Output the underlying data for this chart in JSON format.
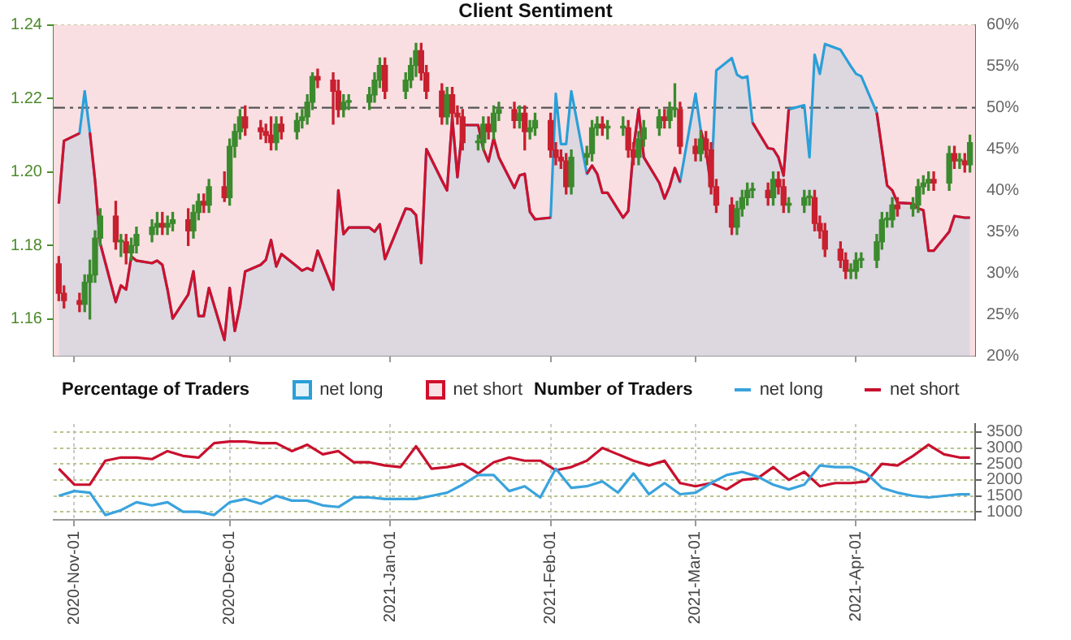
{
  "chart_data": [
    {
      "type": "candlestick",
      "title": "Client Sentiment",
      "legend_title": "Percentage of Traders",
      "legend": "bottom left",
      "grid": true,
      "tick_labels": "y",
      "xlim": [
        "2020-10-28",
        "2021-04-24"
      ],
      "xticks": [
        {
          "value": "2020-11-01",
          "label": null
        },
        {
          "value": "2020-12-01",
          "label": null
        },
        {
          "value": "2021-01-01",
          "label": null
        },
        {
          "value": "2021-02-01",
          "label": null
        },
        {
          "value": "2021-03-01",
          "label": null
        },
        {
          "value": "2021-04-01",
          "label": null
        }
      ],
      "ylim": [
        1.15,
        1.24
      ],
      "yticks": [
        1.16,
        1.18,
        {
          "value": 1.2,
          "label": "1.20"
        },
        1.22,
        1.24
      ],
      "y2lim": [
        20,
        60
      ],
      "y2ticks": [
        {
          "value": 20,
          "label": "20%"
        },
        {
          "value": 25,
          "label": "25%"
        },
        {
          "value": 30,
          "label": "30%"
        },
        {
          "value": 35,
          "label": "35%"
        },
        {
          "value": 40,
          "label": "40%"
        },
        {
          "value": 45,
          "label": "45%"
        },
        {
          "value": 50,
          "label": "50%"
        },
        {
          "value": 55,
          "label": "55%"
        },
        {
          "value": 60,
          "label": "60%"
        }
      ],
      "ref_lines": [
        {
          "axis": "y2",
          "value": 50,
          "color": "#555555",
          "line_style": "dashed"
        }
      ],
      "bands": [
        {
          "axis": "y2",
          "from": 20,
          "to": 60,
          "color": "#f9dfe2"
        }
      ],
      "x": [
        "2020-10-29",
        "2020-10-30",
        "2020-11-02",
        "2020-11-03",
        "2020-11-04",
        "2020-11-05",
        "2020-11-06",
        "2020-11-09",
        "2020-11-10",
        "2020-11-11",
        "2020-11-12",
        "2020-11-13",
        "2020-11-16",
        "2020-11-17",
        "2020-11-18",
        "2020-11-19",
        "2020-11-20",
        "2020-11-23",
        "2020-11-24",
        "2020-11-25",
        "2020-11-26",
        "2020-11-27",
        "2020-11-30",
        "2020-12-01",
        "2020-12-02",
        "2020-12-03",
        "2020-12-04",
        "2020-12-07",
        "2020-12-08",
        "2020-12-09",
        "2020-12-10",
        "2020-12-11",
        "2020-12-14",
        "2020-12-15",
        "2020-12-16",
        "2020-12-17",
        "2020-12-18",
        "2020-12-21",
        "2020-12-22",
        "2020-12-23",
        "2020-12-24",
        "2020-12-28",
        "2020-12-29",
        "2020-12-30",
        "2020-12-31",
        "2021-01-04",
        "2021-01-05",
        "2021-01-06",
        "2021-01-07",
        "2021-01-08",
        "2021-01-11",
        "2021-01-12",
        "2021-01-13",
        "2021-01-14",
        "2021-01-15",
        "2021-01-18",
        "2021-01-19",
        "2021-01-20",
        "2021-01-21",
        "2021-01-22",
        "2021-01-25",
        "2021-01-26",
        "2021-01-27",
        "2021-01-28",
        "2021-01-29",
        "2021-02-01",
        "2021-02-02",
        "2021-02-03",
        "2021-02-04",
        "2021-02-05",
        "2021-02-08",
        "2021-02-09",
        "2021-02-10",
        "2021-02-11",
        "2021-02-12",
        "2021-02-15",
        "2021-02-16",
        "2021-02-17",
        "2021-02-18",
        "2021-02-19",
        "2021-02-22",
        "2021-02-23",
        "2021-02-24",
        "2021-02-25",
        "2021-02-26",
        "2021-03-01",
        "2021-03-02",
        "2021-03-03",
        "2021-03-04",
        "2021-03-05",
        "2021-03-08",
        "2021-03-09",
        "2021-03-10",
        "2021-03-11",
        "2021-03-12",
        "2021-03-15",
        "2021-03-16",
        "2021-03-17",
        "2021-03-18",
        "2021-03-19",
        "2021-03-22",
        "2021-03-23",
        "2021-03-24",
        "2021-03-25",
        "2021-03-26",
        "2021-03-29",
        "2021-03-30",
        "2021-03-31",
        "2021-04-01",
        "2021-04-02",
        "2021-04-05",
        "2021-04-06",
        "2021-04-07",
        "2021-04-08",
        "2021-04-09",
        "2021-04-12",
        "2021-04-13",
        "2021-04-14",
        "2021-04-15",
        "2021-04-16",
        "2021-04-19",
        "2021-04-20",
        "2021-04-21",
        "2021-04-22",
        "2021-04-23"
      ],
      "ohlc": [
        [
          1.175,
          1.177,
          1.165,
          1.167
        ],
        [
          1.167,
          1.169,
          1.163,
          1.165
        ],
        [
          1.165,
          1.167,
          1.162,
          1.164
        ],
        [
          1.164,
          1.172,
          1.162,
          1.17
        ],
        [
          1.17,
          1.176,
          1.16,
          1.172
        ],
        [
          1.172,
          1.184,
          1.17,
          1.182
        ],
        [
          1.182,
          1.19,
          1.18,
          1.188
        ],
        [
          1.188,
          1.192,
          1.179,
          1.181
        ],
        [
          1.181,
          1.183,
          1.177,
          1.181
        ],
        [
          1.181,
          1.183,
          1.175,
          1.178
        ],
        [
          1.178,
          1.182,
          1.176,
          1.18
        ],
        [
          1.18,
          1.185,
          1.178,
          1.183
        ],
        [
          1.183,
          1.187,
          1.181,
          1.185
        ],
        [
          1.185,
          1.189,
          1.183,
          1.186
        ],
        [
          1.186,
          1.189,
          1.183,
          1.185
        ],
        [
          1.185,
          1.188,
          1.183,
          1.186
        ],
        [
          1.186,
          1.189,
          1.184,
          1.187
        ],
        [
          1.187,
          1.19,
          1.18,
          1.184
        ],
        [
          1.184,
          1.191,
          1.182,
          1.189
        ],
        [
          1.189,
          1.194,
          1.187,
          1.192
        ],
        [
          1.192,
          1.194,
          1.189,
          1.191
        ],
        [
          1.191,
          1.198,
          1.189,
          1.196
        ],
        [
          1.196,
          1.2,
          1.192,
          1.193
        ],
        [
          1.193,
          1.209,
          1.191,
          1.207
        ],
        [
          1.207,
          1.213,
          1.204,
          1.211
        ],
        [
          1.211,
          1.217,
          1.209,
          1.215
        ],
        [
          1.215,
          1.218,
          1.21,
          1.212
        ],
        [
          1.212,
          1.214,
          1.209,
          1.211
        ],
        [
          1.211,
          1.213,
          1.208,
          1.21
        ],
        [
          1.21,
          1.215,
          1.206,
          1.208
        ],
        [
          1.208,
          1.215,
          1.206,
          1.213
        ],
        [
          1.213,
          1.215,
          1.209,
          1.211
        ],
        [
          1.211,
          1.216,
          1.209,
          1.214
        ],
        [
          1.214,
          1.217,
          1.212,
          1.215
        ],
        [
          1.215,
          1.221,
          1.213,
          1.219
        ],
        [
          1.219,
          1.227,
          1.217,
          1.226
        ],
        [
          1.226,
          1.228,
          1.223,
          1.225
        ],
        [
          1.225,
          1.227,
          1.213,
          1.222
        ],
        [
          1.222,
          1.225,
          1.215,
          1.217
        ],
        [
          1.217,
          1.221,
          1.215,
          1.219
        ],
        [
          1.219,
          1.221,
          1.217,
          1.219
        ],
        [
          1.219,
          1.223,
          1.217,
          1.221
        ],
        [
          1.221,
          1.227,
          1.219,
          1.225
        ],
        [
          1.225,
          1.231,
          1.223,
          1.229
        ],
        [
          1.229,
          1.231,
          1.22,
          1.222
        ],
        [
          1.222,
          1.227,
          1.22,
          1.225
        ],
        [
          1.225,
          1.231,
          1.223,
          1.229
        ],
        [
          1.229,
          1.235,
          1.226,
          1.233
        ],
        [
          1.233,
          1.235,
          1.225,
          1.227
        ],
        [
          1.227,
          1.229,
          1.22,
          1.222
        ],
        [
          1.222,
          1.224,
          1.213,
          1.215
        ],
        [
          1.215,
          1.223,
          1.213,
          1.221
        ],
        [
          1.221,
          1.223,
          1.214,
          1.216
        ],
        [
          1.216,
          1.218,
          1.213,
          1.215
        ],
        [
          1.215,
          1.217,
          1.206,
          1.208
        ],
        [
          1.208,
          1.21,
          1.206,
          1.208
        ],
        [
          1.208,
          1.215,
          1.206,
          1.213
        ],
        [
          1.213,
          1.215,
          1.209,
          1.211
        ],
        [
          1.211,
          1.218,
          1.209,
          1.216
        ],
        [
          1.216,
          1.219,
          1.214,
          1.217
        ],
        [
          1.217,
          1.219,
          1.212,
          1.214
        ],
        [
          1.214,
          1.218,
          1.212,
          1.216
        ],
        [
          1.216,
          1.218,
          1.206,
          1.211
        ],
        [
          1.211,
          1.214,
          1.209,
          1.212
        ],
        [
          1.212,
          1.216,
          1.21,
          1.214
        ],
        [
          1.214,
          1.216,
          1.204,
          1.206
        ],
        [
          1.206,
          1.208,
          1.202,
          1.204
        ],
        [
          1.204,
          1.206,
          1.201,
          1.203
        ],
        [
          1.203,
          1.205,
          1.194,
          1.196
        ],
        [
          1.196,
          1.206,
          1.194,
          1.204
        ],
        [
          1.204,
          1.207,
          1.202,
          1.205
        ],
        [
          1.205,
          1.214,
          1.203,
          1.212
        ],
        [
          1.212,
          1.215,
          1.21,
          1.213
        ],
        [
          1.213,
          1.215,
          1.21,
          1.212
        ],
        [
          1.212,
          1.214,
          1.209,
          1.212
        ],
        [
          1.212,
          1.215,
          1.21,
          1.212
        ],
        [
          1.212,
          1.214,
          1.204,
          1.206
        ],
        [
          1.206,
          1.208,
          1.202,
          1.204
        ],
        [
          1.204,
          1.211,
          1.202,
          1.209
        ],
        [
          1.209,
          1.214,
          1.207,
          1.212
        ],
        [
          1.212,
          1.217,
          1.21,
          1.215
        ],
        [
          1.215,
          1.217,
          1.212,
          1.214
        ],
        [
          1.214,
          1.219,
          1.212,
          1.217
        ],
        [
          1.217,
          1.224,
          1.215,
          1.217
        ],
        [
          1.217,
          1.219,
          1.205,
          1.207
        ],
        [
          1.207,
          1.209,
          1.203,
          1.205
        ],
        [
          1.205,
          1.211,
          1.203,
          1.209
        ],
        [
          1.209,
          1.211,
          1.204,
          1.206
        ],
        [
          1.206,
          1.208,
          1.194,
          1.196
        ],
        [
          1.196,
          1.198,
          1.189,
          1.191
        ],
        [
          1.191,
          1.193,
          1.183,
          1.185
        ],
        [
          1.185,
          1.192,
          1.183,
          1.19
        ],
        [
          1.19,
          1.195,
          1.188,
          1.193
        ],
        [
          1.193,
          1.197,
          1.191,
          1.195
        ],
        [
          1.195,
          1.197,
          1.193,
          1.195
        ],
        [
          1.195,
          1.197,
          1.191,
          1.193
        ],
        [
          1.193,
          1.2,
          1.191,
          1.198
        ],
        [
          1.198,
          1.2,
          1.194,
          1.196
        ],
        [
          1.196,
          1.198,
          1.189,
          1.191
        ],
        [
          1.191,
          1.193,
          1.189,
          1.191
        ],
        [
          1.191,
          1.195,
          1.189,
          1.193
        ],
        [
          1.193,
          1.195,
          1.191,
          1.193
        ],
        [
          1.193,
          1.195,
          1.184,
          1.186
        ],
        [
          1.186,
          1.188,
          1.182,
          1.184
        ],
        [
          1.184,
          1.186,
          1.177,
          1.179
        ],
        [
          1.179,
          1.181,
          1.174,
          1.176
        ],
        [
          1.176,
          1.178,
          1.171,
          1.173
        ],
        [
          1.173,
          1.175,
          1.171,
          1.173
        ],
        [
          1.173,
          1.178,
          1.171,
          1.176
        ],
        [
          1.176,
          1.178,
          1.174,
          1.176
        ],
        [
          1.176,
          1.183,
          1.174,
          1.181
        ],
        [
          1.181,
          1.189,
          1.179,
          1.187
        ],
        [
          1.187,
          1.189,
          1.185,
          1.187
        ],
        [
          1.187,
          1.193,
          1.185,
          1.191
        ],
        [
          1.191,
          1.193,
          1.188,
          1.19
        ],
        [
          1.19,
          1.193,
          1.188,
          1.191
        ],
        [
          1.191,
          1.198,
          1.189,
          1.196
        ],
        [
          1.196,
          1.199,
          1.194,
          1.197
        ],
        [
          1.197,
          1.2,
          1.195,
          1.198
        ],
        [
          1.198,
          1.2,
          1.195,
          1.197
        ],
        [
          1.197,
          1.207,
          1.195,
          1.205
        ],
        [
          1.205,
          1.207,
          1.201,
          1.203
        ],
        [
          1.203,
          1.205,
          1.201,
          1.203
        ],
        [
          1.203,
          1.205,
          1.2,
          1.202
        ],
        [
          1.202,
          1.21,
          1.2,
          1.208
        ]
      ],
      "series": [
        {
          "name": "net long",
          "type": "area",
          "axis": "y2",
          "color": "#2a9fd8",
          "values": [
            38.4,
            46,
            46.9,
            52,
            47,
            41.2,
            33.6,
            26.5,
            28.5,
            28,
            32,
            31.5,
            31.2,
            31.5,
            31,
            28,
            24.5,
            27.4,
            30.2,
            24.8,
            24.8,
            28.2,
            21.9,
            28.2,
            23,
            26,
            30.2,
            31,
            31.6,
            34,
            30.8,
            32.3,
            30.8,
            30.3,
            30.6,
            30.3,
            32.7,
            28,
            40,
            34.7,
            35.5,
            35.5,
            35,
            35.9,
            31.7,
            37.8,
            37.7,
            37,
            31.2,
            45,
            41.2,
            40,
            48.8,
            41.6,
            47.9,
            47.9,
            45,
            43.5,
            46.3,
            44,
            40.3,
            41.8,
            42,
            37.4,
            36.5,
            36.7,
            51.7,
            45.6,
            45.6,
            52,
            42,
            43,
            42,
            39.7,
            39.7,
            36.7,
            37.5,
            45,
            49.8,
            44,
            40.9,
            39,
            40.5,
            42.7,
            41,
            51.7,
            47.3,
            45,
            40.3,
            54.5,
            56,
            54,
            53.6,
            53.8,
            48.2,
            45.1,
            45,
            44,
            41.8,
            49.8,
            50.3,
            44,
            56.4,
            54.1,
            57.7,
            57,
            56,
            55,
            54.1,
            53.8,
            49.4,
            45,
            40.6,
            40,
            38.5,
            38.4,
            37.8,
            37.6,
            32.7,
            32.7,
            35,
            36.9,
            36.8,
            36.7,
            36.7
          ]
        },
        {
          "name": "net short",
          "type": "line",
          "axis": "y2",
          "color": "#d0102c",
          "values": [
            38.4,
            46,
            46.9,
            null,
            47,
            41.2,
            33.6,
            26.5,
            28.5,
            28,
            32,
            31.5,
            31.2,
            31.5,
            31,
            28,
            24.5,
            27.4,
            30.2,
            24.8,
            24.8,
            28.2,
            21.9,
            28.2,
            23,
            26,
            30.2,
            31,
            31.6,
            34,
            30.8,
            32.3,
            30.8,
            30.3,
            30.6,
            30.3,
            32.7,
            28,
            40,
            34.7,
            35.5,
            35.5,
            35,
            35.9,
            31.7,
            37.8,
            37.7,
            37,
            31.2,
            45,
            41.2,
            40,
            48.8,
            41.6,
            47.9,
            47.9,
            45,
            43.5,
            46.3,
            44,
            40.3,
            41.8,
            42,
            37.4,
            36.5,
            36.7,
            null,
            null,
            null,
            null,
            42,
            43,
            42,
            39.7,
            39.7,
            36.7,
            37.5,
            45,
            49.8,
            44,
            40.9,
            39,
            40.5,
            42.7,
            41,
            null,
            47.3,
            45,
            40.3,
            null,
            null,
            null,
            null,
            null,
            48.2,
            45.1,
            45,
            44,
            41.8,
            49.8,
            null,
            null,
            null,
            null,
            null,
            null,
            null,
            null,
            null,
            null,
            49.4,
            45,
            40.6,
            40,
            38.5,
            38.4,
            37.8,
            37.6,
            32.7,
            32.7,
            35,
            36.9,
            36.8,
            36.7,
            36.7
          ]
        }
      ]
    },
    {
      "type": "line",
      "legend_title": "Number of Traders",
      "legend": "top right",
      "grid": true,
      "xlim": [
        "2020-10-28",
        "2021-04-24"
      ],
      "xticks": [
        {
          "value": "2020-11-01",
          "label": "2020-Nov-01"
        },
        {
          "value": "2020-12-01",
          "label": "2020-Dec-01"
        },
        {
          "value": "2021-01-01",
          "label": "2021-Jan-01"
        },
        {
          "value": "2021-02-01",
          "label": "2021-Feb-01"
        },
        {
          "value": "2021-03-01",
          "label": "2021-Mar-01"
        },
        {
          "value": "2021-04-01",
          "label": "2021-Apr-01"
        }
      ],
      "y2lim": [
        750,
        3750
      ],
      "y2ticks": [
        1000,
        1500,
        2000,
        2500,
        3000,
        3500
      ],
      "x": [
        "2020-10-29",
        "2020-11-01",
        "2020-11-04",
        "2020-11-07",
        "2020-11-10",
        "2020-11-13",
        "2020-11-16",
        "2020-11-19",
        "2020-11-22",
        "2020-11-25",
        "2020-11-28",
        "2020-12-01",
        "2020-12-04",
        "2020-12-07",
        "2020-12-10",
        "2020-12-13",
        "2020-12-16",
        "2020-12-19",
        "2020-12-22",
        "2020-12-25",
        "2020-12-28",
        "2020-12-31",
        "2021-01-03",
        "2021-01-06",
        "2021-01-09",
        "2021-01-12",
        "2021-01-15",
        "2021-01-18",
        "2021-01-21",
        "2021-01-24",
        "2021-01-27",
        "2021-01-30",
        "2021-02-02",
        "2021-02-05",
        "2021-02-08",
        "2021-02-11",
        "2021-02-14",
        "2021-02-17",
        "2021-02-20",
        "2021-02-23",
        "2021-02-26",
        "2021-03-01",
        "2021-03-04",
        "2021-03-07",
        "2021-03-10",
        "2021-03-13",
        "2021-03-16",
        "2021-03-19",
        "2021-03-22",
        "2021-03-25",
        "2021-03-28",
        "2021-03-31",
        "2021-04-03",
        "2021-04-06",
        "2021-04-09",
        "2021-04-12",
        "2021-04-15",
        "2021-04-18",
        "2021-04-21",
        "2021-04-23"
      ],
      "series": [
        {
          "name": "net long",
          "axis": "y2",
          "color": "#3aa3dc",
          "values": [
            1500,
            1650,
            1600,
            900,
            1050,
            1300,
            1200,
            1300,
            1000,
            1000,
            900,
            1300,
            1400,
            1250,
            1500,
            1350,
            1350,
            1200,
            1150,
            1450,
            1450,
            1400,
            1400,
            1400,
            1500,
            1600,
            1850,
            2150,
            2150,
            1650,
            1800,
            1450,
            2350,
            1750,
            1800,
            1950,
            1600,
            2200,
            1550,
            1900,
            1550,
            1600,
            1900,
            2150,
            2250,
            2100,
            1850,
            1700,
            1850,
            2450,
            2400,
            2400,
            2200,
            1750,
            1600,
            1500,
            1450,
            1500,
            1550,
            1550
          ]
        },
        {
          "name": "net short",
          "axis": "y2",
          "color": "#c8102e",
          "values": [
            2350,
            1850,
            1850,
            2600,
            2700,
            2700,
            2650,
            2900,
            2750,
            2700,
            3150,
            3200,
            3200,
            3150,
            3150,
            2900,
            3100,
            2800,
            2900,
            2550,
            2550,
            2450,
            2400,
            3050,
            2350,
            2400,
            2500,
            2200,
            2550,
            2700,
            2600,
            2600,
            2300,
            2400,
            2600,
            3000,
            2800,
            2600,
            2450,
            2600,
            1900,
            1800,
            1900,
            1700,
            2000,
            2050,
            2400,
            2000,
            2250,
            1800,
            1900,
            1900,
            1950,
            2500,
            2450,
            2750,
            3100,
            2800,
            2700,
            2700
          ]
        }
      ]
    }
  ]
}
